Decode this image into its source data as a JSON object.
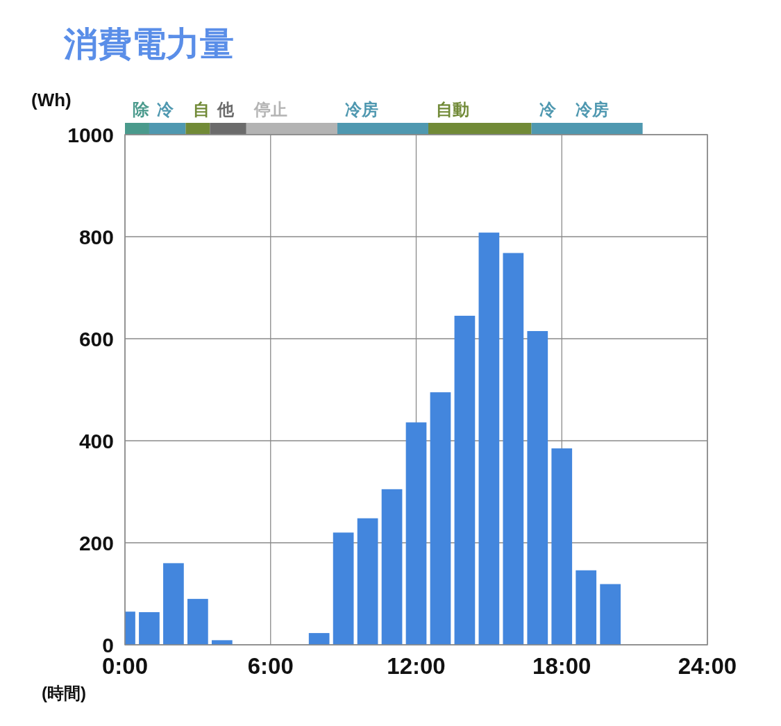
{
  "chart_data": [
    {
      "type": "bar",
      "title": "消費電力量",
      "orientation": "horizontal",
      "stacked": true,
      "categories": [
        null
      ],
      "xlim": [
        0,
        24
      ],
      "tick_labels": false,
      "series": [
        {
          "name": "除",
          "color": "#4a9a8c",
          "values": [
            1
          ]
        },
        {
          "name": "冷",
          "color": "#4f98b0",
          "values": [
            1.5
          ]
        },
        {
          "name": "自",
          "color": "#718a37",
          "values": [
            1
          ]
        },
        {
          "name": "他",
          "color": "#6b6b6b",
          "values": [
            1.5
          ]
        },
        {
          "name": "停止",
          "color": "#b3b3b3",
          "values": [
            3.75
          ]
        },
        {
          "name": "冷房",
          "color": "#4f98b0",
          "values": [
            3.75
          ]
        },
        {
          "name": "自動",
          "color": "#718a37",
          "values": [
            4.25
          ]
        },
        {
          "name": "冷",
          "color": "#4f98b0",
          "values": [
            1.5
          ]
        },
        {
          "name": "冷房",
          "color": "#4f98b0",
          "values": [
            3.08
          ]
        }
      ]
    },
    {
      "type": "bar",
      "xlabel": "(時間)",
      "ylabel": "(Wh)",
      "x": [
        0,
        1,
        2,
        3,
        4,
        8,
        9,
        10,
        11,
        12,
        13,
        14,
        15,
        16,
        17,
        18,
        19,
        20
      ],
      "values": [
        65,
        64,
        160,
        90,
        9,
        23,
        220,
        248,
        305,
        436,
        495,
        645,
        808,
        768,
        615,
        385,
        146,
        119
      ],
      "color": "#4386dd",
      "xlim": [
        0,
        24
      ],
      "xticks": [
        {
          "value": 0,
          "label": "0:00"
        },
        {
          "value": 6,
          "label": "6:00"
        },
        {
          "value": 12,
          "label": "12:00"
        },
        {
          "value": 18,
          "label": "18:00"
        },
        {
          "value": 24,
          "label": "24:00"
        }
      ],
      "ylim": [
        0,
        1000
      ],
      "yticks": [
        0,
        200,
        400,
        600,
        800,
        1000
      ],
      "grid": true
    }
  ]
}
